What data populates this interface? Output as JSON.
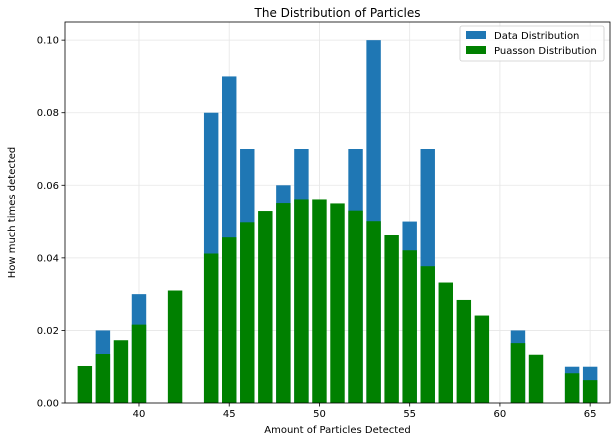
{
  "chart_data": {
    "type": "bar",
    "title": "The Distribution of Particles",
    "xlabel": "Amount of Particles Detected",
    "ylabel": "How much times detected",
    "xlim": [
      35.9,
      66.1
    ],
    "ylim": [
      0,
      0.105
    ],
    "xticks": [
      40,
      45,
      50,
      55,
      60,
      65
    ],
    "yticks": [
      0.0,
      0.02,
      0.04,
      0.06,
      0.08,
      0.1
    ],
    "ytick_labels": [
      "0.00",
      "0.02",
      "0.04",
      "0.06",
      "0.08",
      "0.10"
    ],
    "grid": true,
    "legend_position": "top-right",
    "series": [
      {
        "name": "Data Distribution",
        "color": "#1f77b4",
        "x": [
          38,
          40,
          44,
          45,
          46,
          48,
          49,
          52,
          53,
          55,
          56,
          61,
          64,
          65
        ],
        "values": [
          0.02,
          0.03,
          0.08,
          0.09,
          0.07,
          0.06,
          0.07,
          0.07,
          0.1,
          0.05,
          0.07,
          0.02,
          0.01,
          0.01
        ]
      },
      {
        "name": "Puasson Distribution",
        "color": "#008000",
        "x": [
          37,
          38,
          39,
          40,
          42,
          44,
          45,
          46,
          47,
          48,
          49,
          50,
          51,
          52,
          53,
          54,
          55,
          56,
          57,
          58,
          59,
          61,
          62,
          64,
          65
        ],
        "values": [
          0.0102,
          0.0135,
          0.0173,
          0.0216,
          0.031,
          0.0412,
          0.0457,
          0.0498,
          0.0529,
          0.0551,
          0.0561,
          0.0561,
          0.055,
          0.053,
          0.0501,
          0.0463,
          0.0421,
          0.0377,
          0.0332,
          0.0284,
          0.0241,
          0.0165,
          0.0133,
          0.0082,
          0.0063
        ]
      }
    ]
  }
}
